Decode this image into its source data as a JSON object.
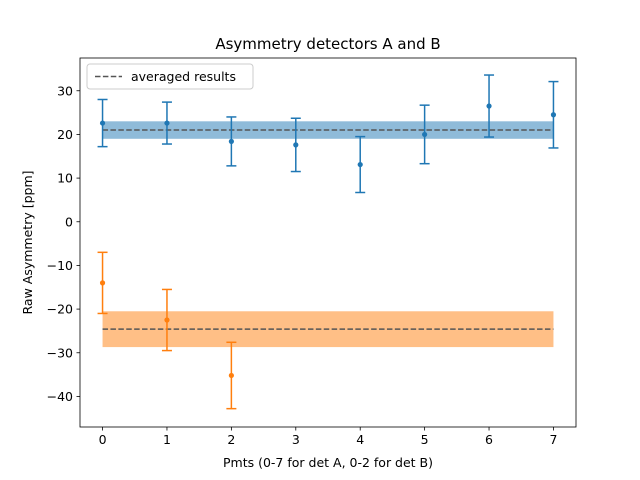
{
  "chart_data": {
    "type": "scatter",
    "title": "Asymmetry detectors A and B",
    "xlabel": "Pmts (0-7 for det A, 0-2 for det B)",
    "ylabel": "Raw Asymmetry [ppm]",
    "xlim": [
      -0.35,
      7.35
    ],
    "ylim": [
      -47,
      37.5
    ],
    "xticks": [
      0,
      1,
      2,
      3,
      4,
      5,
      6,
      7
    ],
    "yticks": [
      30,
      20,
      10,
      0,
      -10,
      -20,
      -30,
      -40
    ],
    "ytick_labels": [
      "30",
      "20",
      "10",
      "0",
      "−10",
      "−20",
      "−30",
      "−40"
    ],
    "grid": false,
    "legend": {
      "placement": "top-left",
      "entries": [
        "averaged results"
      ]
    },
    "series": [
      {
        "color": "#1f77b4",
        "x": [
          0,
          1,
          2,
          3,
          4,
          5,
          6,
          7
        ],
        "y": [
          22.6,
          22.6,
          18.4,
          17.6,
          13.1,
          20.0,
          26.5,
          24.5
        ],
        "err": [
          5.4,
          4.8,
          5.6,
          6.1,
          6.4,
          6.7,
          7.1,
          7.6
        ]
      },
      {
        "color": "#ff7f0e",
        "x": [
          0,
          1,
          2
        ],
        "y": [
          -14.0,
          -22.5,
          -35.2
        ],
        "err": [
          7.0,
          7.0,
          7.6
        ]
      }
    ],
    "averages": [
      {
        "color": "#1f77b4",
        "value": 21.0,
        "band": [
          19.0,
          23.0
        ],
        "x_range": [
          0,
          7
        ]
      },
      {
        "color": "#ff7f0e",
        "value": -24.6,
        "band": [
          -28.7,
          -20.5
        ],
        "x_range": [
          0,
          7
        ]
      }
    ]
  }
}
